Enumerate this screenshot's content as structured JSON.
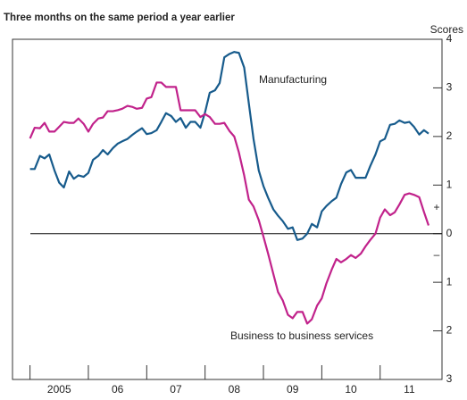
{
  "chart_data": {
    "type": "line",
    "title": "Three months on the same period a year earlier",
    "y_axis_label": "Scores",
    "annotations": [
      "Manufacturing",
      "Business to business services",
      "+",
      "–"
    ],
    "xlim": [
      2004.7,
      2012.06
    ],
    "xticks": [
      {
        "value": 2005,
        "label": "2005"
      },
      {
        "value": 2006,
        "label": "06"
      },
      {
        "value": 2007,
        "label": "07"
      },
      {
        "value": 2008,
        "label": "08"
      },
      {
        "value": 2009,
        "label": "09"
      },
      {
        "value": 2010,
        "label": "10"
      },
      {
        "value": 2011,
        "label": "11"
      }
    ],
    "ylim": [
      -3,
      4
    ],
    "yticks": [
      4,
      3,
      2,
      1,
      0,
      {
        "value": -1,
        "label": "1"
      },
      {
        "value": -2,
        "label": "2"
      },
      {
        "value": -3,
        "label": "3"
      }
    ],
    "x": [
      2005.0,
      2005.08,
      2005.17,
      2005.25,
      2005.33,
      2005.42,
      2005.5,
      2005.58,
      2005.67,
      2005.75,
      2005.83,
      2005.92,
      2006.0,
      2006.08,
      2006.17,
      2006.25,
      2006.33,
      2006.42,
      2006.5,
      2006.58,
      2006.67,
      2006.75,
      2006.83,
      2006.92,
      2007.0,
      2007.08,
      2007.17,
      2007.25,
      2007.33,
      2007.42,
      2007.5,
      2007.58,
      2007.67,
      2007.75,
      2007.83,
      2007.92,
      2008.0,
      2008.08,
      2008.17,
      2008.25,
      2008.33,
      2008.42,
      2008.5,
      2008.58,
      2008.67,
      2008.75,
      2008.83,
      2008.92,
      2009.0,
      2009.08,
      2009.17,
      2009.25,
      2009.33,
      2009.42,
      2009.5,
      2009.58,
      2009.67,
      2009.75,
      2009.83,
      2009.92,
      2010.0,
      2010.08,
      2010.17,
      2010.25,
      2010.33,
      2010.42,
      2010.5,
      2010.58,
      2010.67,
      2010.75,
      2010.83,
      2010.92,
      2011.0,
      2011.08,
      2011.17,
      2011.25,
      2011.33,
      2011.42,
      2011.5,
      2011.58,
      2011.67,
      2011.75,
      2011.83
    ],
    "series": [
      {
        "name": "Manufacturing",
        "color": "#175b8c",
        "values": [
          1.33,
          1.33,
          1.6,
          1.55,
          1.63,
          1.3,
          1.05,
          0.95,
          1.28,
          1.13,
          1.2,
          1.17,
          1.25,
          1.52,
          1.6,
          1.72,
          1.63,
          1.76,
          1.85,
          1.9,
          1.95,
          2.03,
          2.1,
          2.17,
          2.05,
          2.07,
          2.13,
          2.3,
          2.48,
          2.42,
          2.3,
          2.38,
          2.18,
          2.3,
          2.3,
          2.18,
          2.5,
          2.9,
          2.95,
          3.1,
          3.63,
          3.7,
          3.74,
          3.72,
          3.42,
          2.68,
          1.95,
          1.3,
          0.98,
          0.74,
          0.5,
          0.37,
          0.26,
          0.1,
          0.13,
          -0.13,
          -0.1,
          0,
          0.2,
          0.13,
          0.46,
          0.57,
          0.67,
          0.74,
          1.02,
          1.26,
          1.31,
          1.15,
          1.15,
          1.15,
          1.39,
          1.63,
          1.9,
          1.95,
          2.24,
          2.26,
          2.33,
          2.28,
          2.3,
          2.2,
          2.04,
          2.13,
          2.06
        ]
      },
      {
        "name": "Business to business services",
        "color": "#c1228b",
        "values": [
          1.96,
          2.18,
          2.17,
          2.28,
          2.1,
          2.1,
          2.2,
          2.3,
          2.28,
          2.28,
          2.37,
          2.26,
          2.1,
          2.26,
          2.37,
          2.39,
          2.52,
          2.52,
          2.54,
          2.57,
          2.63,
          2.61,
          2.57,
          2.59,
          2.78,
          2.81,
          3.11,
          3.11,
          3.02,
          3.02,
          3.02,
          2.54,
          2.54,
          2.54,
          2.54,
          2.4,
          2.46,
          2.4,
          2.26,
          2.26,
          2.28,
          2.11,
          2.0,
          1.67,
          1.2,
          0.7,
          0.56,
          0.28,
          -0.06,
          -0.41,
          -0.83,
          -1.2,
          -1.37,
          -1.67,
          -1.74,
          -1.61,
          -1.61,
          -1.85,
          -1.76,
          -1.48,
          -1.33,
          -1.02,
          -0.74,
          -0.52,
          -0.59,
          -0.52,
          -0.44,
          -0.5,
          -0.41,
          -0.26,
          -0.13,
          0,
          0.33,
          0.5,
          0.38,
          0.44,
          0.6,
          0.8,
          0.83,
          0.8,
          0.75,
          0.45,
          0.17
        ]
      }
    ]
  }
}
